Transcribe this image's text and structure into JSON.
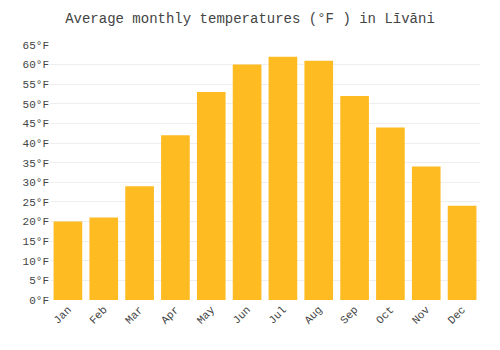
{
  "chart_data": {
    "type": "bar",
    "title": "Average monthly temperatures (°F ) in Līvāni",
    "categories": [
      "Jan",
      "Feb",
      "Mar",
      "Apr",
      "May",
      "Jun",
      "Jul",
      "Aug",
      "Sep",
      "Oct",
      "Nov",
      "Dec"
    ],
    "values": [
      20,
      21,
      29,
      42,
      53,
      60,
      62,
      61,
      52,
      44,
      34,
      24
    ],
    "color": "#FFBB22",
    "ylim": [
      0,
      65
    ],
    "yticks": [
      {
        "value": 0,
        "label": "0°F"
      },
      {
        "value": 5,
        "label": "5°F"
      },
      {
        "value": 10,
        "label": "10°F"
      },
      {
        "value": 15,
        "label": "15°F"
      },
      {
        "value": 20,
        "label": "20°F"
      },
      {
        "value": 25,
        "label": "25°F"
      },
      {
        "value": 30,
        "label": "30°F"
      },
      {
        "value": 35,
        "label": "35°F"
      },
      {
        "value": 40,
        "label": "40°F"
      },
      {
        "value": 45,
        "label": "45°F"
      },
      {
        "value": 50,
        "label": "50°F"
      },
      {
        "value": 55,
        "label": "55°F"
      },
      {
        "value": 60,
        "label": "60°F"
      },
      {
        "value": 65,
        "label": "65°F"
      }
    ],
    "grid": true
  }
}
